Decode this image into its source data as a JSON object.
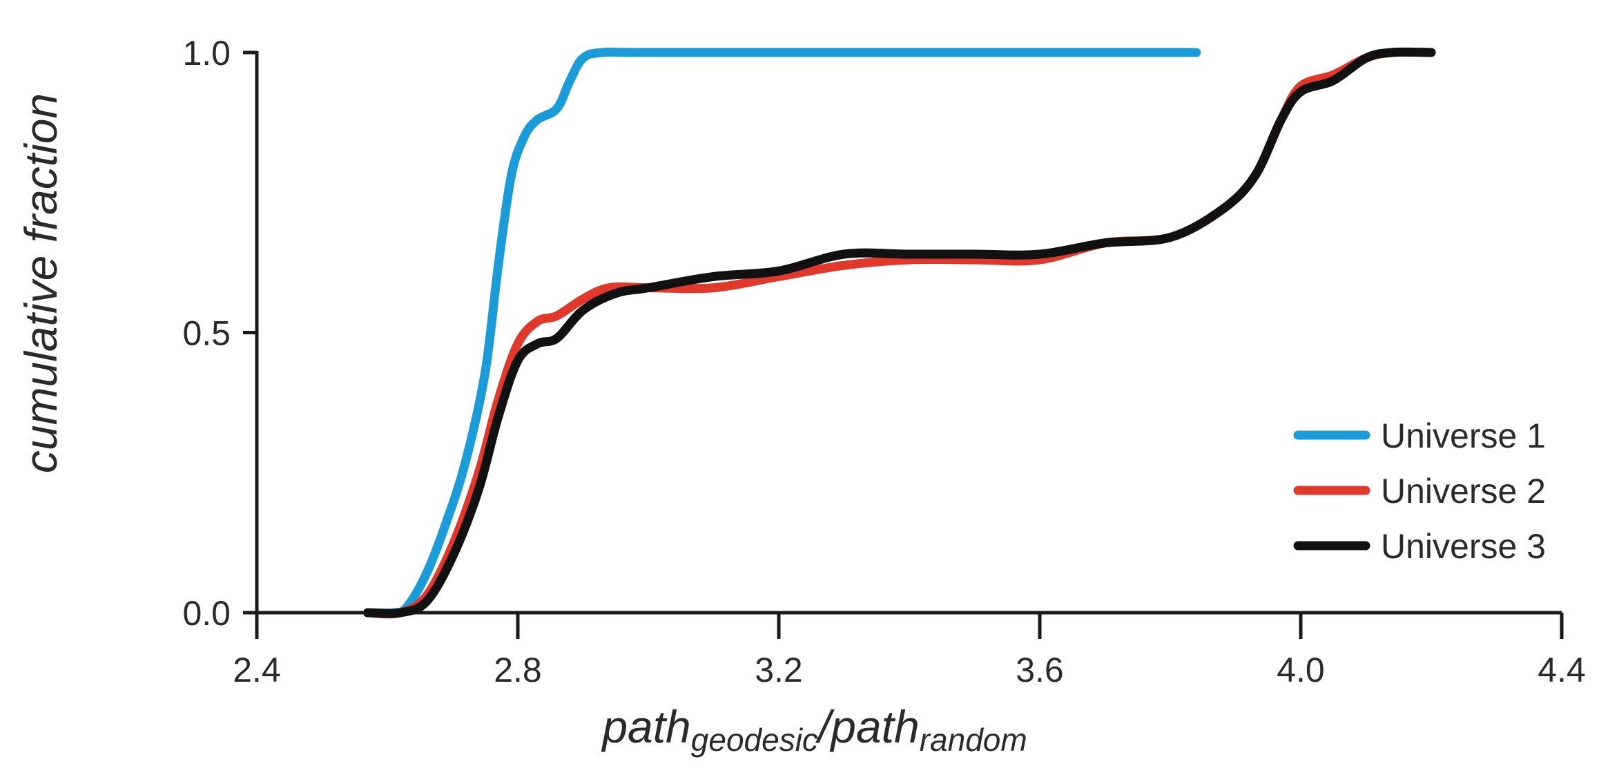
{
  "chart_data": {
    "type": "line",
    "xlabel": {
      "main": "path",
      "sub1": "geodesic",
      "sep": "/path",
      "sub2": "random"
    },
    "ylabel": "cumulative fraction",
    "xlim": [
      2.4,
      4.4
    ],
    "ylim": [
      0.0,
      1.0
    ],
    "x_ticks": [
      "2.4",
      "2.8",
      "3.2",
      "3.6",
      "4.0",
      "4.4"
    ],
    "x_tick_values": [
      2.4,
      2.8,
      3.2,
      3.6,
      4.0,
      4.4
    ],
    "y_ticks": [
      "0.0",
      "0.5",
      "1.0"
    ],
    "y_tick_values": [
      0.0,
      0.5,
      1.0
    ],
    "grid": false,
    "legend_position": "bottom-right",
    "series": [
      {
        "name": "Universe 1",
        "color": "#1b9cd8",
        "points": [
          [
            2.57,
            0.0
          ],
          [
            2.61,
            0.0
          ],
          [
            2.63,
            0.01
          ],
          [
            2.66,
            0.07
          ],
          [
            2.69,
            0.16
          ],
          [
            2.72,
            0.27
          ],
          [
            2.75,
            0.43
          ],
          [
            2.77,
            0.62
          ],
          [
            2.79,
            0.78
          ],
          [
            2.81,
            0.85
          ],
          [
            2.83,
            0.88
          ],
          [
            2.86,
            0.9
          ],
          [
            2.88,
            0.95
          ],
          [
            2.9,
            0.99
          ],
          [
            2.93,
            1.0
          ],
          [
            3.0,
            1.0
          ],
          [
            3.4,
            1.0
          ],
          [
            3.6,
            1.0
          ],
          [
            3.75,
            1.0
          ],
          [
            3.84,
            1.0
          ]
        ]
      },
      {
        "name": "Universe 2",
        "color": "#e0392b",
        "points": [
          [
            2.57,
            0.0
          ],
          [
            2.62,
            0.0
          ],
          [
            2.66,
            0.03
          ],
          [
            2.7,
            0.12
          ],
          [
            2.74,
            0.25
          ],
          [
            2.77,
            0.38
          ],
          [
            2.8,
            0.48
          ],
          [
            2.83,
            0.52
          ],
          [
            2.86,
            0.53
          ],
          [
            2.9,
            0.56
          ],
          [
            2.94,
            0.58
          ],
          [
            3.0,
            0.58
          ],
          [
            3.1,
            0.58
          ],
          [
            3.2,
            0.6
          ],
          [
            3.3,
            0.62
          ],
          [
            3.4,
            0.63
          ],
          [
            3.5,
            0.63
          ],
          [
            3.6,
            0.63
          ],
          [
            3.7,
            0.66
          ],
          [
            3.8,
            0.67
          ],
          [
            3.88,
            0.72
          ],
          [
            3.93,
            0.78
          ],
          [
            3.97,
            0.88
          ],
          [
            4.0,
            0.94
          ],
          [
            4.05,
            0.96
          ],
          [
            4.1,
            0.99
          ],
          [
            4.14,
            1.0
          ],
          [
            4.2,
            1.0
          ]
        ]
      },
      {
        "name": "Universe 3",
        "color": "#111111",
        "points": [
          [
            2.57,
            0.0
          ],
          [
            2.62,
            0.0
          ],
          [
            2.66,
            0.02
          ],
          [
            2.7,
            0.1
          ],
          [
            2.74,
            0.22
          ],
          [
            2.77,
            0.35
          ],
          [
            2.8,
            0.45
          ],
          [
            2.83,
            0.48
          ],
          [
            2.86,
            0.49
          ],
          [
            2.9,
            0.54
          ],
          [
            2.95,
            0.57
          ],
          [
            3.0,
            0.58
          ],
          [
            3.1,
            0.6
          ],
          [
            3.2,
            0.61
          ],
          [
            3.3,
            0.64
          ],
          [
            3.4,
            0.64
          ],
          [
            3.5,
            0.64
          ],
          [
            3.6,
            0.64
          ],
          [
            3.7,
            0.66
          ],
          [
            3.8,
            0.67
          ],
          [
            3.88,
            0.72
          ],
          [
            3.93,
            0.78
          ],
          [
            3.97,
            0.88
          ],
          [
            4.0,
            0.93
          ],
          [
            4.05,
            0.95
          ],
          [
            4.1,
            0.99
          ],
          [
            4.14,
            1.0
          ],
          [
            4.2,
            1.0
          ]
        ]
      }
    ]
  }
}
